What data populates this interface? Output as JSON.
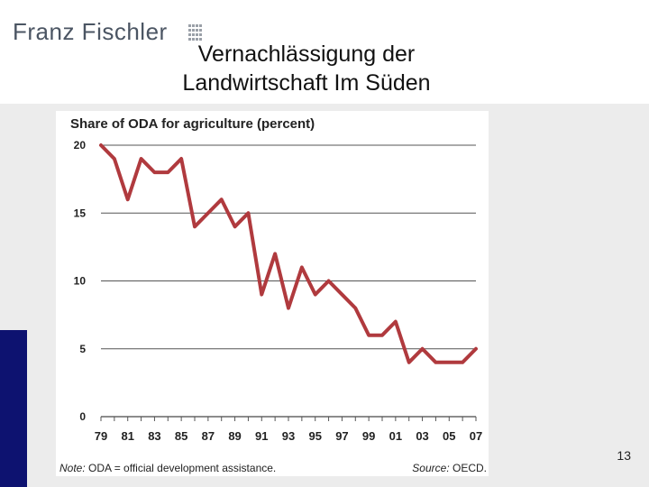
{
  "brand": {
    "name": "Franz Fischler"
  },
  "slide": {
    "title_line1": "Vernachlässigung der",
    "title_line2": "Landwirtschaft Im Süden",
    "page_number": "13"
  },
  "colors": {
    "line": "#b03a3e",
    "side_bar": "#0d1270",
    "background": "#ececec"
  },
  "chart_data": {
    "type": "line",
    "title": "Share of ODA for agriculture (percent)",
    "ylim": [
      0,
      20
    ],
    "y_ticks": [
      "20",
      "15",
      "10",
      "5",
      "0"
    ],
    "x_tick_labels": [
      "79",
      "81",
      "83",
      "85",
      "87",
      "89",
      "91",
      "93",
      "95",
      "97",
      "99",
      "01",
      "03",
      "05",
      "07"
    ],
    "grid": "horizontal",
    "series": [
      {
        "x": [
          1979,
          1980,
          1981,
          1982,
          1983,
          1984,
          1985,
          1986,
          1987,
          1988,
          1989,
          1990,
          1991,
          1992,
          1993,
          1994,
          1995,
          1996,
          1997,
          1998,
          1999,
          2000,
          2001,
          2002,
          2003,
          2004,
          2005,
          2006,
          2007
        ],
        "values": [
          20,
          19,
          16,
          19,
          18,
          18,
          19,
          14,
          15,
          16,
          14,
          15,
          9,
          12,
          8,
          11,
          9,
          10,
          9,
          8,
          6,
          6,
          7,
          4,
          5,
          4,
          4,
          4,
          5
        ]
      }
    ],
    "note_prefix": "Note:",
    "note_text": " ODA = official development assistance.",
    "source_prefix": "Source:",
    "source_text": " OECD."
  }
}
